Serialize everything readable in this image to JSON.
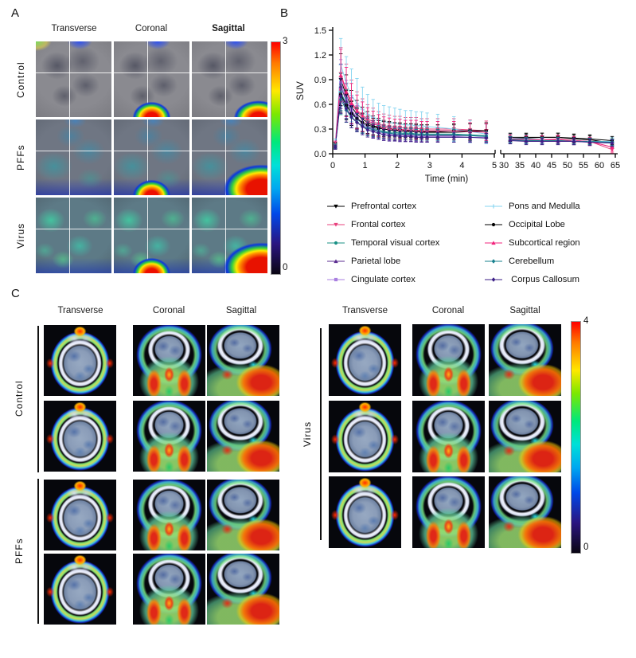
{
  "panel_a": {
    "label": "A",
    "column_headers": [
      "Transverse",
      "Coronal",
      "Sagittal"
    ],
    "row_labels": [
      "Control",
      "PFFs",
      "Virus"
    ],
    "colorbar": {
      "max": "3",
      "min": "0"
    }
  },
  "panel_b": {
    "label": "B"
  },
  "panel_c": {
    "label": "C",
    "left": {
      "column_headers": [
        "Transverse",
        "Coronal",
        "Sagittal"
      ],
      "group_labels": [
        "Control",
        "PFFs"
      ],
      "rows_per_group": [
        2,
        2
      ]
    },
    "right": {
      "column_headers": [
        "Transverse",
        "Coronal",
        "Sagittal"
      ],
      "group_label": "Virus",
      "rows": 3
    },
    "colorbar": {
      "max": "4",
      "min": "0"
    }
  },
  "chart_data": {
    "type": "line",
    "title": "",
    "xlabel": "Time (min)",
    "ylabel": "SUV",
    "ylim": [
      0,
      1.5
    ],
    "yticks": [
      0.0,
      0.3,
      0.6,
      0.9,
      1.2,
      1.5
    ],
    "ytick_labels": [
      "0.0",
      "0.3",
      "0.6",
      "0.9",
      "1.2",
      "1.5"
    ],
    "axis_break": true,
    "x_early_range": [
      0,
      5
    ],
    "x_late_range": [
      30,
      65
    ],
    "xticks_early": [
      0,
      1,
      2,
      3,
      4,
      5
    ],
    "xticks_late": [
      30,
      35,
      40,
      45,
      50,
      55,
      60,
      65
    ],
    "x_early": [
      0.08,
      0.25,
      0.42,
      0.58,
      0.75,
      0.92,
      1.08,
      1.25,
      1.42,
      1.58,
      1.75,
      1.92,
      2.08,
      2.25,
      2.42,
      2.58,
      2.75,
      2.92,
      3.25,
      3.75,
      4.25,
      4.75
    ],
    "x_late": [
      32,
      37,
      42,
      47,
      52,
      57,
      64
    ],
    "grid": false,
    "legend_position": "below",
    "error_bars": "sd",
    "series": [
      {
        "name": "Prefrontal cortex",
        "color": "#000000",
        "marker": "tri-down",
        "sd_factor": 0.35,
        "sd_late": 0.05,
        "early": [
          0.1,
          0.9,
          0.71,
          0.57,
          0.48,
          0.42,
          0.38,
          0.34,
          0.32,
          0.3,
          0.29,
          0.28,
          0.28,
          0.27,
          0.27,
          0.27,
          0.26,
          0.26,
          0.26,
          0.26,
          0.27,
          0.28
        ],
        "late": [
          0.19,
          0.19,
          0.2,
          0.2,
          0.18,
          0.17,
          0.13
        ]
      },
      {
        "name": "Frontal cortex",
        "color": "#e8417e",
        "marker": "tri-down",
        "sd_factor": 0.42,
        "sd_late": 0.05,
        "early": [
          0.1,
          0.97,
          0.77,
          0.63,
          0.53,
          0.47,
          0.42,
          0.39,
          0.36,
          0.34,
          0.33,
          0.32,
          0.32,
          0.31,
          0.31,
          0.31,
          0.3,
          0.3,
          0.3,
          0.3,
          0.29,
          0.28
        ],
        "late": [
          0.18,
          0.17,
          0.17,
          0.18,
          0.16,
          0.15,
          0.05
        ]
      },
      {
        "name": "Temporal visual cortex",
        "color": "#1a9186",
        "marker": "circle",
        "sd_factor": 0.3,
        "sd_late": 0.04,
        "early": [
          0.09,
          0.75,
          0.6,
          0.49,
          0.42,
          0.37,
          0.33,
          0.31,
          0.29,
          0.27,
          0.26,
          0.26,
          0.25,
          0.25,
          0.25,
          0.24,
          0.24,
          0.24,
          0.24,
          0.24,
          0.23,
          0.22
        ],
        "late": [
          0.17,
          0.17,
          0.16,
          0.16,
          0.16,
          0.15,
          0.14
        ]
      },
      {
        "name": "Parietal lobe",
        "color": "#5b2d90",
        "marker": "tri-up",
        "sd_factor": 0.33,
        "sd_late": 0.04,
        "early": [
          0.08,
          0.82,
          0.64,
          0.51,
          0.43,
          0.37,
          0.33,
          0.3,
          0.27,
          0.26,
          0.25,
          0.24,
          0.24,
          0.23,
          0.23,
          0.23,
          0.22,
          0.22,
          0.22,
          0.22,
          0.22,
          0.21
        ],
        "late": [
          0.17,
          0.16,
          0.16,
          0.16,
          0.15,
          0.15,
          0.14
        ]
      },
      {
        "name": "Cingulate cortex",
        "color": "#a97fe0",
        "marker": "square",
        "sd_factor": 0.33,
        "sd_late": 0.04,
        "early": [
          0.09,
          0.86,
          0.67,
          0.53,
          0.44,
          0.37,
          0.33,
          0.29,
          0.27,
          0.25,
          0.24,
          0.23,
          0.23,
          0.22,
          0.22,
          0.22,
          0.21,
          0.21,
          0.21,
          0.21,
          0.2,
          0.2
        ],
        "late": [
          0.16,
          0.16,
          0.15,
          0.15,
          0.15,
          0.14,
          0.13
        ]
      },
      {
        "name": "Pons and Medulla",
        "color": "#85d4f0",
        "marker": "plus",
        "sd_factor": 0.5,
        "sd_late": 0.05,
        "early": [
          0.12,
          1.08,
          0.86,
          0.71,
          0.61,
          0.54,
          0.48,
          0.44,
          0.41,
          0.39,
          0.38,
          0.37,
          0.36,
          0.35,
          0.35,
          0.34,
          0.34,
          0.33,
          0.32,
          0.3,
          0.27,
          0.24
        ],
        "late": [
          0.19,
          0.18,
          0.17,
          0.17,
          0.16,
          0.15,
          0.15
        ]
      },
      {
        "name": "Occipital Lobe",
        "color": "#000000",
        "marker": "circle",
        "sd_factor": 0.3,
        "sd_late": 0.05,
        "early": [
          0.1,
          0.72,
          0.59,
          0.49,
          0.43,
          0.38,
          0.35,
          0.33,
          0.31,
          0.3,
          0.29,
          0.29,
          0.28,
          0.28,
          0.28,
          0.27,
          0.27,
          0.27,
          0.27,
          0.28,
          0.28,
          0.28
        ],
        "late": [
          0.2,
          0.2,
          0.2,
          0.2,
          0.19,
          0.18,
          0.16
        ]
      },
      {
        "name": "Subcortical region",
        "color": "#f2247c",
        "marker": "tri-up",
        "sd_factor": 0.4,
        "sd_late": 0.05,
        "early": [
          0.11,
          0.95,
          0.75,
          0.61,
          0.51,
          0.45,
          0.4,
          0.37,
          0.34,
          0.32,
          0.31,
          0.3,
          0.3,
          0.29,
          0.29,
          0.29,
          0.28,
          0.28,
          0.28,
          0.28,
          0.27,
          0.26
        ],
        "late": [
          0.18,
          0.17,
          0.17,
          0.17,
          0.16,
          0.15,
          0.08
        ]
      },
      {
        "name": "Cerebellum",
        "color": "#17808e",
        "marker": "diamond",
        "sd_factor": 0.28,
        "sd_late": 0.04,
        "early": [
          0.09,
          0.66,
          0.53,
          0.44,
          0.38,
          0.34,
          0.31,
          0.29,
          0.27,
          0.26,
          0.25,
          0.24,
          0.24,
          0.24,
          0.24,
          0.23,
          0.23,
          0.23,
          0.23,
          0.23,
          0.22,
          0.21
        ],
        "late": [
          0.17,
          0.16,
          0.16,
          0.16,
          0.15,
          0.15,
          0.14
        ]
      },
      {
        "name": " Corpus Callosum",
        "color": "#3b1e86",
        "marker": "diamond",
        "sd_factor": 0.3,
        "sd_late": 0.04,
        "early": [
          0.08,
          0.7,
          0.55,
          0.45,
          0.38,
          0.33,
          0.29,
          0.27,
          0.25,
          0.23,
          0.22,
          0.22,
          0.21,
          0.21,
          0.21,
          0.2,
          0.2,
          0.2,
          0.2,
          0.2,
          0.2,
          0.19
        ],
        "late": [
          0.16,
          0.15,
          0.15,
          0.15,
          0.15,
          0.14,
          0.13
        ]
      }
    ]
  }
}
